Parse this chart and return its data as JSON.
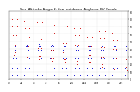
{
  "title": "Sun Altitude Angle & Sun Incidence Angle on PV Panels",
  "title_fontsize": 3.2,
  "bg_color": "#ffffff",
  "grid_color": "#888888",
  "ylim": [
    0,
    90
  ],
  "y_ticks": [
    0,
    10,
    20,
    30,
    40,
    50,
    60,
    70,
    80,
    90
  ],
  "y_tick_labels": [
    "0",
    "10",
    "20",
    "30",
    "40",
    "50",
    "60",
    "70",
    "80",
    "90"
  ],
  "y_tick_fontsize": 2.2,
  "x_tick_fontsize": 2.0,
  "x_tick_labels": [
    "0",
    "12h",
    "24",
    "36",
    "48",
    "60",
    "72",
    "84",
    "96",
    "108",
    "120",
    "132",
    "144",
    "156",
    "168",
    "180",
    "192",
    "204",
    "216",
    "228"
  ],
  "xlim": [
    0,
    228
  ],
  "blue_series": [
    [
      6,
      5
    ],
    [
      7,
      15
    ],
    [
      8,
      28
    ],
    [
      9,
      38
    ],
    [
      10,
      44
    ],
    [
      11,
      45
    ],
    [
      12,
      44
    ],
    [
      13,
      38
    ],
    [
      14,
      28
    ],
    [
      15,
      15
    ],
    [
      16,
      5
    ],
    [
      30,
      5
    ],
    [
      31,
      15
    ],
    [
      32,
      28
    ],
    [
      33,
      38
    ],
    [
      34,
      44
    ],
    [
      35,
      46
    ],
    [
      36,
      44
    ],
    [
      37,
      38
    ],
    [
      38,
      28
    ],
    [
      39,
      15
    ],
    [
      40,
      5
    ],
    [
      54,
      5
    ],
    [
      55,
      15
    ],
    [
      56,
      28
    ],
    [
      57,
      38
    ],
    [
      58,
      44
    ],
    [
      59,
      47
    ],
    [
      60,
      44
    ],
    [
      61,
      38
    ],
    [
      62,
      28
    ],
    [
      63,
      15
    ],
    [
      64,
      5
    ],
    [
      78,
      5
    ],
    [
      79,
      15
    ],
    [
      80,
      28
    ],
    [
      81,
      38
    ],
    [
      82,
      44
    ],
    [
      83,
      46
    ],
    [
      84,
      44
    ],
    [
      85,
      38
    ],
    [
      86,
      28
    ],
    [
      87,
      15
    ],
    [
      88,
      5
    ],
    [
      102,
      5
    ],
    [
      103,
      15
    ],
    [
      104,
      28
    ],
    [
      105,
      38
    ],
    [
      106,
      44
    ],
    [
      107,
      45
    ],
    [
      108,
      44
    ],
    [
      109,
      38
    ],
    [
      110,
      28
    ],
    [
      111,
      15
    ],
    [
      112,
      5
    ],
    [
      126,
      5
    ],
    [
      127,
      15
    ],
    [
      128,
      28
    ],
    [
      129,
      38
    ],
    [
      130,
      44
    ],
    [
      131,
      45
    ],
    [
      132,
      44
    ],
    [
      133,
      38
    ],
    [
      134,
      28
    ],
    [
      135,
      15
    ],
    [
      136,
      5
    ],
    [
      150,
      5
    ],
    [
      151,
      15
    ],
    [
      152,
      28
    ],
    [
      153,
      38
    ],
    [
      154,
      44
    ],
    [
      155,
      45
    ],
    [
      156,
      44
    ],
    [
      157,
      38
    ],
    [
      158,
      28
    ],
    [
      159,
      15
    ],
    [
      160,
      5
    ],
    [
      174,
      5
    ],
    [
      175,
      15
    ],
    [
      176,
      28
    ],
    [
      177,
      38
    ],
    [
      178,
      44
    ],
    [
      179,
      45
    ],
    [
      180,
      44
    ],
    [
      181,
      38
    ],
    [
      182,
      28
    ],
    [
      183,
      15
    ],
    [
      184,
      5
    ],
    [
      198,
      5
    ],
    [
      199,
      15
    ],
    [
      200,
      28
    ],
    [
      201,
      38
    ],
    [
      202,
      44
    ],
    [
      203,
      45
    ],
    [
      204,
      44
    ],
    [
      205,
      38
    ],
    [
      206,
      28
    ],
    [
      207,
      15
    ],
    [
      208,
      5
    ],
    [
      222,
      5
    ],
    [
      223,
      15
    ],
    [
      224,
      28
    ],
    [
      225,
      38
    ],
    [
      226,
      44
    ],
    [
      227,
      45
    ]
  ],
  "red_series": [
    [
      6,
      80
    ],
    [
      7,
      70
    ],
    [
      8,
      58
    ],
    [
      9,
      46
    ],
    [
      10,
      36
    ],
    [
      11,
      32
    ],
    [
      12,
      36
    ],
    [
      13,
      46
    ],
    [
      14,
      58
    ],
    [
      15,
      70
    ],
    [
      16,
      80
    ],
    [
      30,
      78
    ],
    [
      31,
      68
    ],
    [
      32,
      56
    ],
    [
      33,
      44
    ],
    [
      34,
      34
    ],
    [
      35,
      30
    ],
    [
      36,
      34
    ],
    [
      37,
      44
    ],
    [
      38,
      56
    ],
    [
      39,
      68
    ],
    [
      40,
      78
    ],
    [
      54,
      75
    ],
    [
      55,
      65
    ],
    [
      56,
      53
    ],
    [
      57,
      41
    ],
    [
      58,
      31
    ],
    [
      59,
      27
    ],
    [
      60,
      31
    ],
    [
      61,
      41
    ],
    [
      62,
      53
    ],
    [
      63,
      65
    ],
    [
      64,
      75
    ],
    [
      78,
      72
    ],
    [
      79,
      62
    ],
    [
      80,
      50
    ],
    [
      81,
      38
    ],
    [
      82,
      28
    ],
    [
      83,
      24
    ],
    [
      84,
      28
    ],
    [
      85,
      38
    ],
    [
      86,
      50
    ],
    [
      87,
      62
    ],
    [
      88,
      72
    ],
    [
      102,
      70
    ],
    [
      103,
      60
    ],
    [
      104,
      48
    ],
    [
      105,
      36
    ],
    [
      106,
      26
    ],
    [
      107,
      22
    ],
    [
      108,
      26
    ],
    [
      109,
      36
    ],
    [
      110,
      48
    ],
    [
      111,
      60
    ],
    [
      112,
      70
    ],
    [
      126,
      68
    ],
    [
      127,
      58
    ],
    [
      128,
      46
    ],
    [
      129,
      34
    ],
    [
      130,
      24
    ],
    [
      131,
      20
    ],
    [
      132,
      24
    ],
    [
      133,
      34
    ],
    [
      134,
      46
    ],
    [
      135,
      58
    ],
    [
      136,
      68
    ],
    [
      150,
      66
    ],
    [
      151,
      56
    ],
    [
      152,
      44
    ],
    [
      153,
      32
    ],
    [
      154,
      22
    ],
    [
      155,
      18
    ],
    [
      156,
      22
    ],
    [
      157,
      32
    ],
    [
      158,
      44
    ],
    [
      159,
      56
    ],
    [
      160,
      66
    ],
    [
      174,
      64
    ],
    [
      175,
      54
    ],
    [
      176,
      42
    ],
    [
      177,
      30
    ],
    [
      178,
      20
    ],
    [
      179,
      16
    ],
    [
      180,
      20
    ],
    [
      181,
      30
    ],
    [
      182,
      42
    ],
    [
      183,
      54
    ],
    [
      184,
      64
    ],
    [
      198,
      62
    ],
    [
      199,
      52
    ],
    [
      200,
      40
    ],
    [
      201,
      28
    ],
    [
      202,
      18
    ],
    [
      203,
      14
    ],
    [
      204,
      18
    ],
    [
      205,
      28
    ],
    [
      206,
      40
    ],
    [
      207,
      52
    ],
    [
      208,
      62
    ],
    [
      222,
      60
    ],
    [
      223,
      50
    ],
    [
      224,
      38
    ],
    [
      225,
      26
    ],
    [
      226,
      16
    ],
    [
      227,
      12
    ]
  ]
}
